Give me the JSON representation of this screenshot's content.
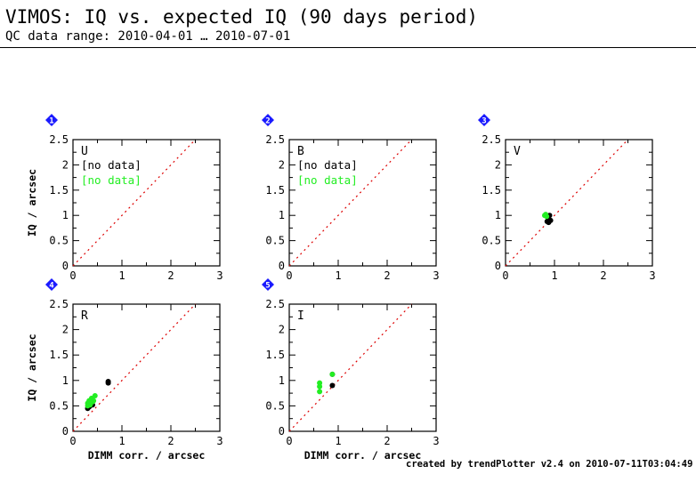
{
  "header": {
    "title": "VIMOS: IQ vs. expected IQ (90 days period)",
    "subtitle": "QC data range: 2010-04-01 … 2010-07-01"
  },
  "footer": {
    "credit": "created by trendPlotter v2.4 on 2010-07-11T03:04:49"
  },
  "colors": {
    "black_series": "#000000",
    "green_series": "#22ee22",
    "reference_line": "#dd0000",
    "badge": "#1a1aff"
  },
  "chart_data": [
    {
      "type": "scatter",
      "panel_number": "1",
      "filter": "U",
      "xlim": [
        0,
        3
      ],
      "ylim": [
        0,
        2.5
      ],
      "xticks": [
        "0",
        "1",
        "2",
        "3"
      ],
      "yticks": [
        "0",
        "0.5",
        "1",
        "1.5",
        "2",
        "2.5"
      ],
      "xlabel": "",
      "ylabel": "IQ / arcsec",
      "no_data": [
        "[no data]",
        "[no data]"
      ],
      "series": [
        {
          "color": "#000000",
          "points": []
        },
        {
          "color": "#22ee22",
          "points": []
        }
      ]
    },
    {
      "type": "scatter",
      "panel_number": "2",
      "filter": "B",
      "xlim": [
        0,
        3
      ],
      "ylim": [
        0,
        2.5
      ],
      "xticks": [
        "0",
        "1",
        "2",
        "3"
      ],
      "yticks": [
        "0",
        "0.5",
        "1",
        "1.5",
        "2",
        "2.5"
      ],
      "xlabel": "",
      "ylabel": "",
      "no_data": [
        "[no data]",
        "[no data]"
      ],
      "series": [
        {
          "color": "#000000",
          "points": []
        },
        {
          "color": "#22ee22",
          "points": []
        }
      ]
    },
    {
      "type": "scatter",
      "panel_number": "3",
      "filter": "V",
      "xlim": [
        0,
        3
      ],
      "ylim": [
        0,
        2.5
      ],
      "xticks": [
        "0",
        "1",
        "2",
        "3"
      ],
      "yticks": [
        "0",
        "0.5",
        "1",
        "1.5",
        "2",
        "2.5"
      ],
      "xlabel": "",
      "ylabel": "",
      "no_data": [],
      "series": [
        {
          "color": "#000000",
          "points": [
            [
              0.85,
              0.88
            ],
            [
              0.88,
              0.86
            ],
            [
              0.9,
              1.0
            ],
            [
              0.87,
              0.95
            ],
            [
              0.92,
              0.9
            ]
          ]
        },
        {
          "color": "#22ee22",
          "points": [
            [
              0.8,
              1.0
            ],
            [
              0.82,
              1.02
            ],
            [
              0.84,
              0.98
            ]
          ]
        }
      ]
    },
    {
      "type": "scatter",
      "panel_number": "4",
      "filter": "R",
      "xlim": [
        0,
        3
      ],
      "ylim": [
        0,
        2.5
      ],
      "xticks": [
        "0",
        "1",
        "2",
        "3"
      ],
      "yticks": [
        "0",
        "0.5",
        "1",
        "1.5",
        "2",
        "2.5"
      ],
      "xlabel": "DIMM corr. / arcsec",
      "ylabel": "IQ / arcsec",
      "no_data": [],
      "series": [
        {
          "color": "#000000",
          "points": [
            [
              0.3,
              0.45
            ],
            [
              0.35,
              0.5
            ],
            [
              0.33,
              0.48
            ],
            [
              0.72,
              0.95
            ],
            [
              0.72,
              0.98
            ],
            [
              0.4,
              0.52
            ]
          ]
        },
        {
          "color": "#22ee22",
          "points": [
            [
              0.3,
              0.55
            ],
            [
              0.33,
              0.6
            ],
            [
              0.38,
              0.65
            ],
            [
              0.45,
              0.7
            ],
            [
              0.42,
              0.6
            ],
            [
              0.35,
              0.52
            ],
            [
              0.3,
              0.5
            ],
            [
              0.4,
              0.58
            ]
          ]
        }
      ]
    },
    {
      "type": "scatter",
      "panel_number": "5",
      "filter": "I",
      "xlim": [
        0,
        3
      ],
      "ylim": [
        0,
        2.5
      ],
      "xticks": [
        "0",
        "1",
        "2",
        "3"
      ],
      "yticks": [
        "0",
        "0.5",
        "1",
        "1.5",
        "2",
        "2.5"
      ],
      "xlabel": "DIMM corr. / arcsec",
      "ylabel": "",
      "no_data": [],
      "series": [
        {
          "color": "#000000",
          "points": [
            [
              0.88,
              0.9
            ],
            [
              0.88,
              1.12
            ]
          ]
        },
        {
          "color": "#22ee22",
          "points": [
            [
              0.62,
              0.78
            ],
            [
              0.62,
              0.88
            ],
            [
              0.62,
              0.95
            ],
            [
              0.88,
              1.12
            ]
          ]
        }
      ]
    }
  ]
}
